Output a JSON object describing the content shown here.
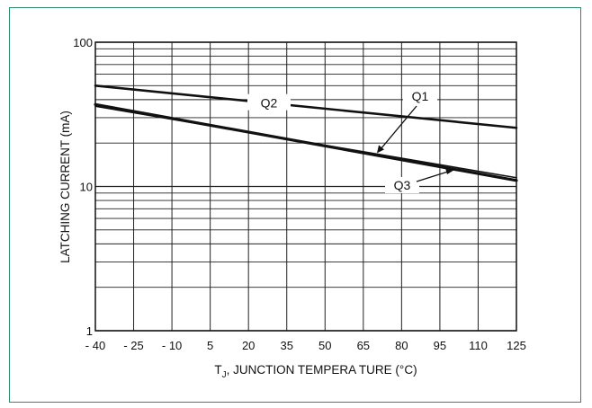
{
  "chart_data": {
    "type": "line",
    "title": "",
    "xlabel": "T_J, JUNCTION TEMPERATURE (°C)",
    "xlabel_parts": {
      "main": "T",
      "subscript": "J",
      "rest": ", JUNCTION TEMPERA TURE (°C)"
    },
    "ylabel": "LATCHING CURRENT (mA)",
    "x_ticks": [
      "- 40",
      "- 25",
      "- 10",
      "5",
      "20",
      "35",
      "50",
      "65",
      "80",
      "95",
      "110",
      "125"
    ],
    "x_tick_values": [
      -40,
      -25,
      -10,
      5,
      20,
      35,
      50,
      65,
      80,
      95,
      110,
      125
    ],
    "y_ticks": [
      "1",
      "10",
      "100"
    ],
    "y_tick_values": [
      1,
      10,
      100
    ],
    "xlim": [
      -40,
      125
    ],
    "ylim": [
      1,
      100
    ],
    "y_scale": "log",
    "grid": true,
    "series": [
      {
        "name": "Q1",
        "x": [
          -40,
          125
        ],
        "y": [
          36,
          11.5
        ]
      },
      {
        "name": "Q2",
        "x": [
          -40,
          125
        ],
        "y": [
          50,
          25.5
        ]
      },
      {
        "name": "Q3",
        "x": [
          -40,
          125
        ],
        "y": [
          37,
          11
        ]
      }
    ],
    "annotations": [
      {
        "text": "Q1",
        "series": "Q1"
      },
      {
        "text": "Q2",
        "series": "Q2"
      },
      {
        "text": "Q3",
        "series": "Q3"
      }
    ]
  },
  "colors": {
    "border": "#2e8a6b",
    "line": "#111111",
    "grid": "#222222"
  }
}
